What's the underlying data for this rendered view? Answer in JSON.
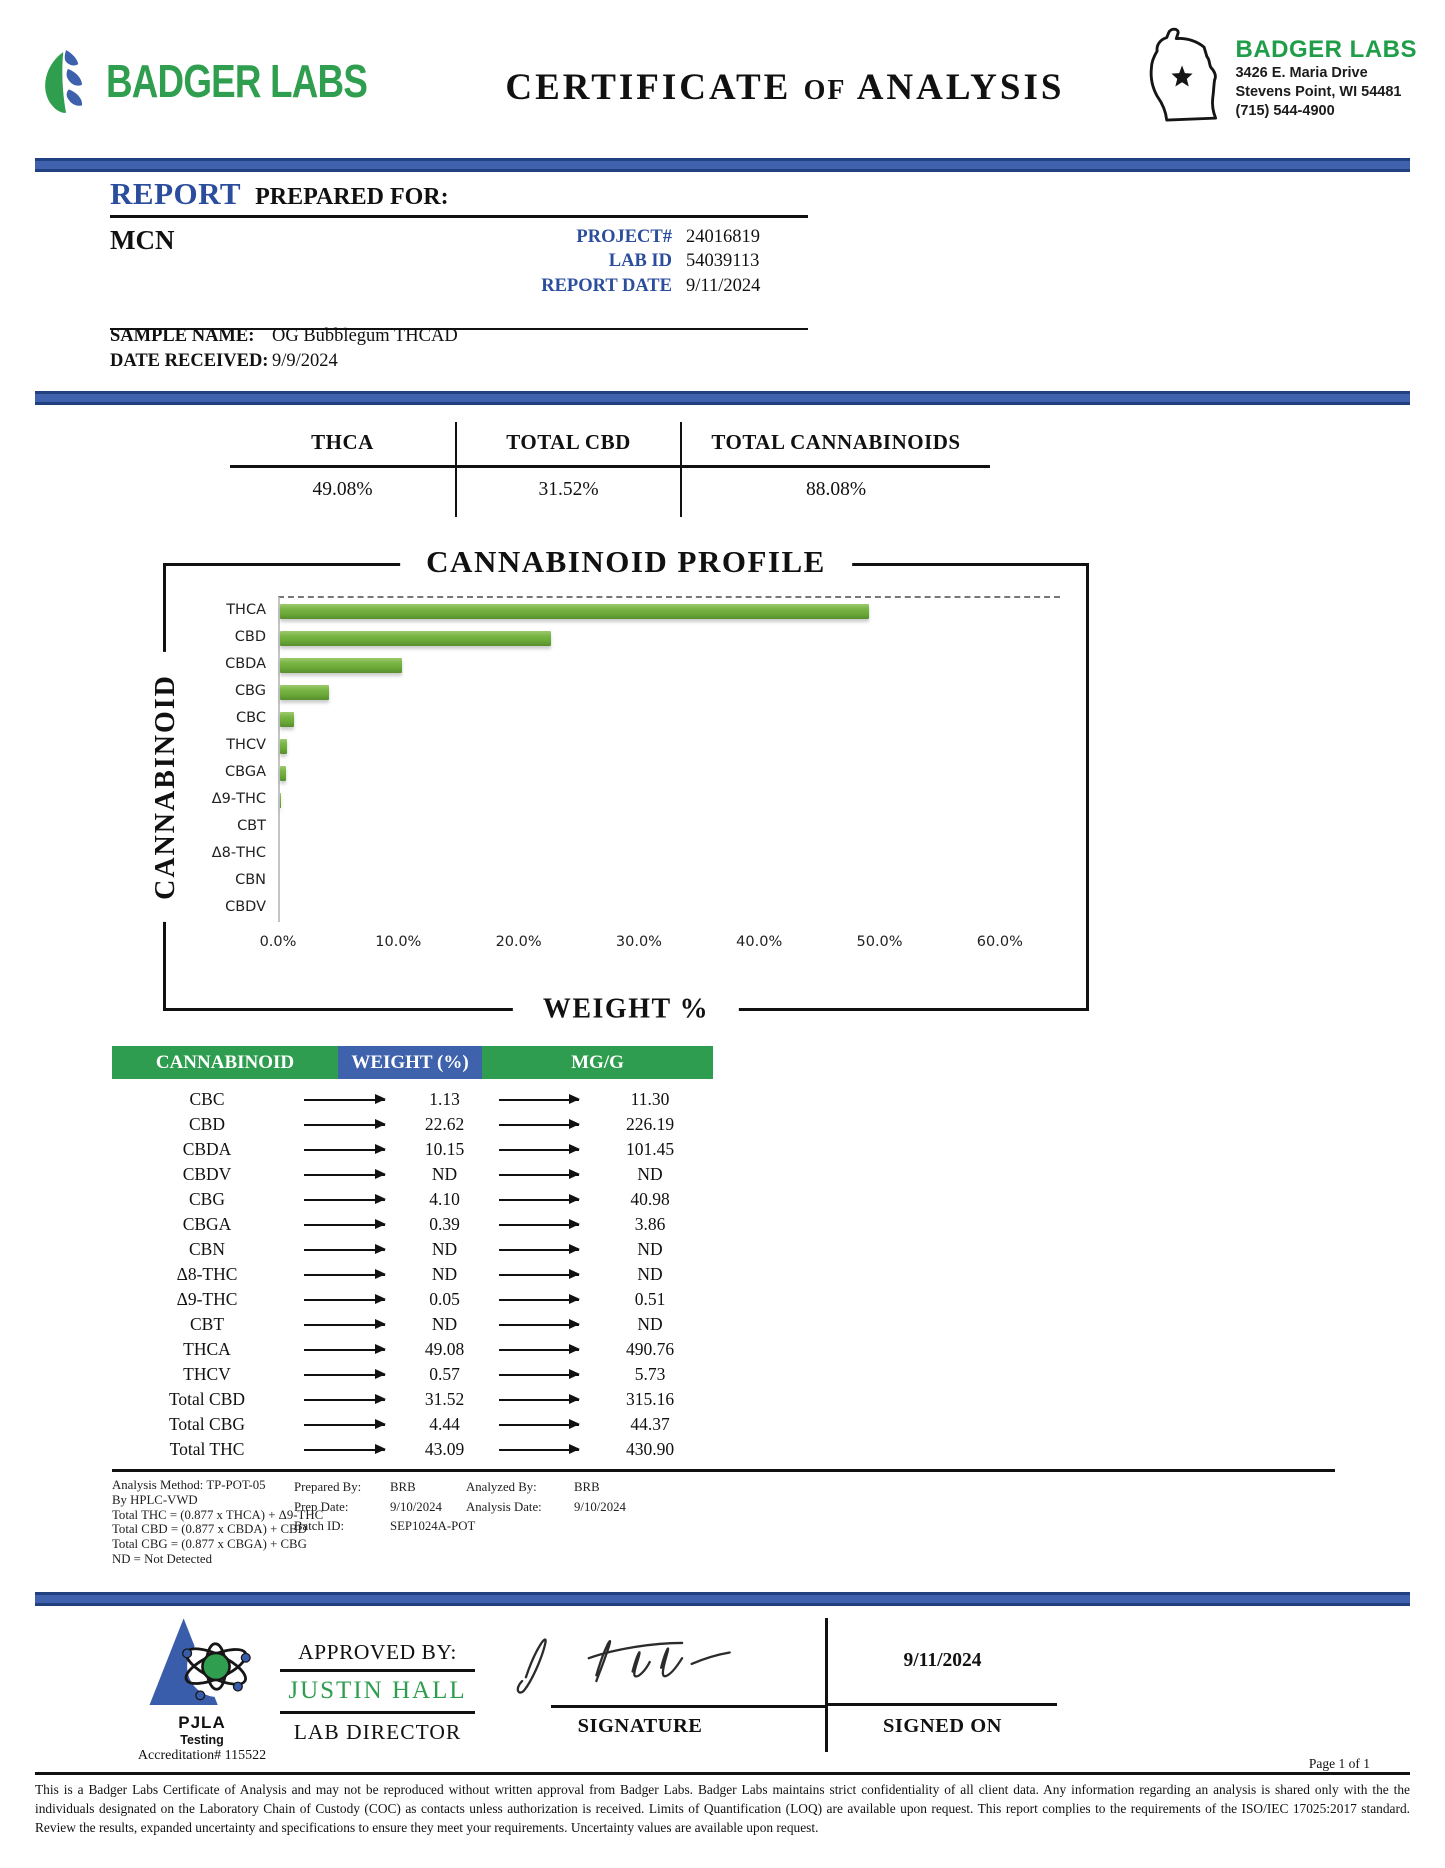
{
  "colors": {
    "banner_blue": "#4061ae",
    "accent_blue": "#3f62ad",
    "label_blue": "#2b4d9e",
    "brand_green": "#2f9e4e",
    "table_green": "#2e9d4f",
    "bar_green": "#6fb13e"
  },
  "header": {
    "logo_text": "BADGER LABS",
    "title_1": "CERTIFICATE",
    "title_of": "OF",
    "title_2": "ANALYSIS",
    "lab": {
      "name": "BADGER LABS",
      "address1": "3426 E. Maria Drive",
      "address2": "Stevens Point, WI 54481",
      "phone": "(715) 544-4900"
    }
  },
  "report": {
    "title_blue": "REPORT",
    "title_rest": "PREPARED FOR:",
    "client": "MCN",
    "fields": [
      {
        "label": "PROJECT#",
        "value": "24016819"
      },
      {
        "label": "LAB ID",
        "value": "54039113"
      },
      {
        "label": "REPORT DATE",
        "value": "9/11/2024"
      }
    ],
    "sample_name_label": "SAMPLE NAME:",
    "sample_name": "OG Bubblegum THCAD",
    "date_received_label": "DATE RECEIVED:",
    "date_received": "9/9/2024"
  },
  "summary": [
    {
      "label": "THCA",
      "value": "49.08%"
    },
    {
      "label": "TOTAL CBD",
      "value": "31.52%"
    },
    {
      "label": "TOTAL CANNABINOIDS",
      "value": "88.08%"
    }
  ],
  "chart_data": {
    "type": "bar",
    "orientation": "horizontal",
    "title": "CANNABINOID PROFILE",
    "xlabel": "WEIGHT %",
    "ylabel": "CANNABINOID",
    "categories": [
      "THCA",
      "CBD",
      "CBDA",
      "CBG",
      "CBC",
      "THCV",
      "CBGA",
      "Δ9-THC",
      "CBT",
      "Δ8-THC",
      "CBN",
      "CBDV"
    ],
    "values": [
      49.08,
      22.62,
      10.15,
      4.1,
      1.13,
      0.57,
      0.39,
      0.05,
      0,
      0,
      0,
      0
    ],
    "xlim": [
      0,
      65
    ],
    "xticks": [
      0,
      10,
      20,
      30,
      40,
      50,
      60
    ],
    "xtick_labels": [
      "0.0%",
      "10.0%",
      "20.0%",
      "30.0%",
      "40.0%",
      "50.0%",
      "60.0%"
    ],
    "bar_color": "#6fb13e",
    "grid": false,
    "legend": "none"
  },
  "results_table": {
    "headers": [
      "CANNABINOID",
      "WEIGHT (%)",
      "MG/G"
    ],
    "header_colors": [
      "#2e9d4f",
      "#3f62ad",
      "#2e9d4f"
    ],
    "rows": [
      [
        "CBC",
        "1.13",
        "11.30"
      ],
      [
        "CBD",
        "22.62",
        "226.19"
      ],
      [
        "CBDA",
        "10.15",
        "101.45"
      ],
      [
        "CBDV",
        "ND",
        "ND"
      ],
      [
        "CBG",
        "4.10",
        "40.98"
      ],
      [
        "CBGA",
        "0.39",
        "3.86"
      ],
      [
        "CBN",
        "ND",
        "ND"
      ],
      [
        "Δ8-THC",
        "ND",
        "ND"
      ],
      [
        "Δ9-THC",
        "0.05",
        "0.51"
      ],
      [
        "CBT",
        "ND",
        "ND"
      ],
      [
        "THCA",
        "49.08",
        "490.76"
      ],
      [
        "THCV",
        "0.57",
        "5.73"
      ],
      [
        "Total CBD",
        "31.52",
        "315.16"
      ],
      [
        "Total CBG",
        "4.44",
        "44.37"
      ],
      [
        "Total THC",
        "43.09",
        "430.90"
      ]
    ]
  },
  "footnotes": {
    "left": [
      "Analysis Method: TP-POT-05",
      "By HPLC-VWD",
      "Total THC = (0.877 x  THCA) + Δ9-THC",
      "Total CBD = (0.877 x  CBDA) + CBD",
      "Total CBG = (0.877 x  CBGA) + CBG",
      "ND = Not Detected"
    ],
    "middle": [
      {
        "label": "Prepared By:",
        "value": "BRB"
      },
      {
        "label": "Prep Date:",
        "value": "9/10/2024"
      },
      {
        "label": "Batch ID:",
        "value": "SEP1024A-POT"
      }
    ],
    "right": [
      {
        "label": "Analyzed By:",
        "value": "BRB"
      },
      {
        "label": "Analysis Date:",
        "value": "9/10/2024"
      }
    ]
  },
  "approval": {
    "pjla_name": "PJLA",
    "pjla_sub": "Testing",
    "accreditation": "Accreditation# 115522",
    "approved_by_label": "APPROVED BY:",
    "approver_name": "JUSTIN HALL",
    "approver_title": "LAB DIRECTOR",
    "signature_label": "SIGNATURE",
    "signed_on_value": "9/11/2024",
    "signed_on_label": "SIGNED ON",
    "page_label": "Page 1 of 1"
  },
  "disclaimer": "This is a Badger Labs Certificate of Analysis and may not be reproduced without written approval from Badger Labs. Badger Labs maintains strict confidentiality of all client data. Any information regarding an analysis is shared only with the the individuals designated on the Laboratory Chain of Custody (COC) as contacts unless authorization is received. Limits of Quantification (LOQ) are available upon request. This report complies to the requirements of the ISO/IEC 17025:2017 standard. Review the results, expanded uncertainty and specifications to ensure they meet your requirements. Uncertainty values are available upon request."
}
